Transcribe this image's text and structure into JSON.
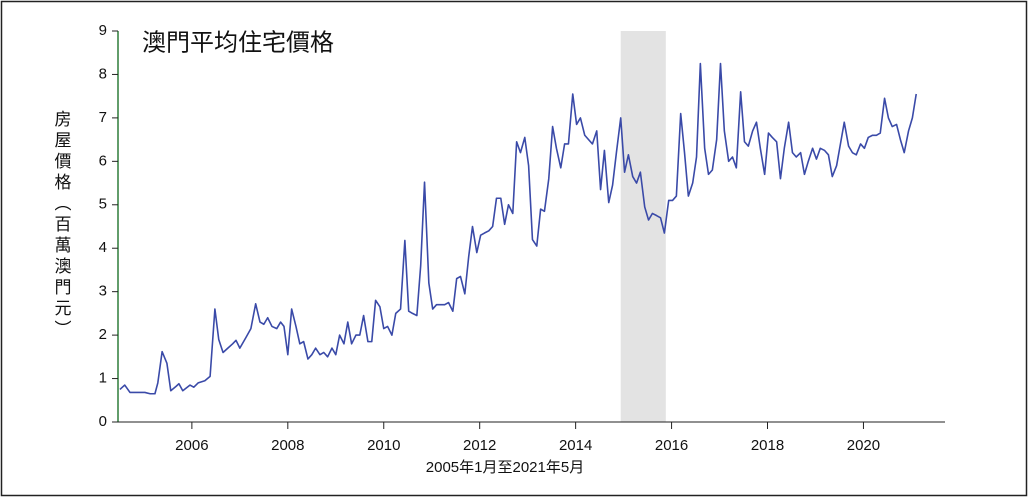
{
  "chart_data": {
    "type": "line",
    "title": "澳門平均住宅價格",
    "y_label": "房屋價格（百萬澳門元）",
    "x_label": "2005年1月至2021年5月",
    "xlim": [
      2004.46,
      2021.7
    ],
    "xticks": [
      2006,
      2008,
      2010,
      2012,
      2014,
      2016,
      2018,
      2020
    ],
    "ylim": [
      0,
      9
    ],
    "yticks": [
      0,
      1,
      2,
      3,
      4,
      5,
      6,
      7,
      8,
      9
    ],
    "shaded_x": [
      2014.94,
      2015.88
    ],
    "shade_color": "#e3e3e3",
    "series": [
      {
        "color": "#3a4aa8",
        "x": [
          2004.5,
          2004.6,
          2004.71,
          2005.02,
          2005.13,
          2005.23,
          2005.29,
          2005.38,
          2005.48,
          2005.56,
          2005.67,
          2005.73,
          2005.81,
          2005.96,
          2006.04,
          2006.13,
          2006.27,
          2006.38,
          2006.48,
          2006.56,
          2006.65,
          2006.75,
          2006.85,
          2006.92,
          2007.0,
          2007.13,
          2007.23,
          2007.33,
          2007.42,
          2007.5,
          2007.58,
          2007.67,
          2007.77,
          2007.85,
          2007.92,
          2008.0,
          2008.08,
          2008.17,
          2008.25,
          2008.33,
          2008.42,
          2008.5,
          2008.58,
          2008.67,
          2008.75,
          2008.83,
          2008.92,
          2009.0,
          2009.08,
          2009.17,
          2009.25,
          2009.33,
          2009.42,
          2009.5,
          2009.58,
          2009.67,
          2009.75,
          2009.83,
          2009.92,
          2010.0,
          2010.08,
          2010.17,
          2010.25,
          2010.35,
          2010.44,
          2010.52,
          2010.6,
          2010.69,
          2010.77,
          2010.85,
          2010.94,
          2011.02,
          2011.1,
          2011.19,
          2011.27,
          2011.35,
          2011.44,
          2011.52,
          2011.6,
          2011.69,
          2011.77,
          2011.85,
          2011.94,
          2012.02,
          2012.1,
          2012.19,
          2012.27,
          2012.35,
          2012.44,
          2012.52,
          2012.6,
          2012.69,
          2012.77,
          2012.85,
          2012.94,
          2013.02,
          2013.1,
          2013.19,
          2013.27,
          2013.35,
          2013.44,
          2013.52,
          2013.6,
          2013.69,
          2013.77,
          2013.85,
          2013.94,
          2014.02,
          2014.1,
          2014.19,
          2014.27,
          2014.35,
          2014.44,
          2014.52,
          2014.6,
          2014.69,
          2014.77,
          2014.85,
          2014.94,
          2015.02,
          2015.1,
          2015.19,
          2015.27,
          2015.35,
          2015.44,
          2015.52,
          2015.6,
          2015.69,
          2015.77,
          2015.85,
          2015.94,
          2016.02,
          2016.1,
          2016.19,
          2016.27,
          2016.35,
          2016.44,
          2016.52,
          2016.6,
          2016.69,
          2016.77,
          2016.85,
          2016.94,
          2017.02,
          2017.1,
          2017.19,
          2017.27,
          2017.35,
          2017.44,
          2017.52,
          2017.6,
          2017.69,
          2017.77,
          2017.85,
          2017.94,
          2018.02,
          2018.1,
          2018.19,
          2018.27,
          2018.35,
          2018.44,
          2018.52,
          2018.6,
          2018.69,
          2018.77,
          2018.85,
          2018.94,
          2019.02,
          2019.1,
          2019.19,
          2019.27,
          2019.35,
          2019.44,
          2019.52,
          2019.6,
          2019.69,
          2019.77,
          2019.85,
          2019.94,
          2020.02,
          2020.1,
          2020.19,
          2020.27,
          2020.35,
          2020.44,
          2020.52,
          2020.6,
          2020.69,
          2020.77,
          2020.85,
          2020.94,
          2021.02,
          2021.1
        ],
        "values": [
          0.75,
          0.85,
          0.68,
          0.68,
          0.65,
          0.65,
          0.9,
          1.62,
          1.35,
          0.72,
          0.82,
          0.88,
          0.72,
          0.85,
          0.8,
          0.9,
          0.95,
          1.05,
          2.6,
          1.9,
          1.6,
          1.7,
          1.8,
          1.88,
          1.7,
          1.95,
          2.15,
          2.72,
          2.3,
          2.25,
          2.4,
          2.2,
          2.15,
          2.3,
          2.2,
          1.55,
          2.6,
          2.2,
          1.8,
          1.85,
          1.45,
          1.55,
          1.7,
          1.55,
          1.6,
          1.5,
          1.7,
          1.55,
          2.0,
          1.8,
          2.3,
          1.8,
          2.0,
          2.0,
          2.45,
          1.85,
          1.85,
          2.8,
          2.65,
          2.15,
          2.2,
          2.0,
          2.5,
          2.6,
          4.18,
          2.55,
          2.5,
          2.45,
          3.6,
          5.52,
          3.2,
          2.6,
          2.7,
          2.7,
          2.7,
          2.75,
          2.55,
          3.3,
          3.35,
          2.95,
          3.8,
          4.5,
          3.9,
          4.3,
          4.35,
          4.4,
          4.5,
          5.15,
          5.15,
          4.55,
          5.0,
          4.8,
          6.45,
          6.2,
          6.55,
          5.9,
          4.2,
          4.05,
          4.9,
          4.85,
          5.6,
          6.8,
          6.3,
          5.85,
          6.4,
          6.4,
          7.55,
          6.85,
          7.0,
          6.6,
          6.5,
          6.4,
          6.7,
          5.35,
          6.25,
          5.05,
          5.45,
          6.2,
          7.0,
          5.75,
          6.15,
          5.65,
          5.5,
          5.75,
          4.95,
          4.65,
          4.8,
          4.75,
          4.7,
          4.35,
          5.1,
          5.1,
          5.2,
          7.1,
          6.2,
          5.2,
          5.5,
          6.1,
          8.25,
          6.3,
          5.7,
          5.8,
          6.5,
          8.25,
          6.7,
          6.0,
          6.1,
          5.85,
          7.6,
          6.45,
          6.35,
          6.7,
          6.9,
          6.3,
          5.7,
          6.65,
          6.55,
          6.45,
          5.6,
          6.3,
          6.9,
          6.2,
          6.1,
          6.2,
          5.7,
          6.0,
          6.3,
          6.05,
          6.3,
          6.25,
          6.15,
          5.65,
          5.9,
          6.4,
          6.9,
          6.35,
          6.2,
          6.15,
          6.4,
          6.3,
          6.55,
          6.6,
          6.6,
          6.65,
          7.45,
          7.0,
          6.8,
          6.85,
          6.5,
          6.2,
          6.7,
          7.0,
          7.55
        ]
      }
    ]
  }
}
